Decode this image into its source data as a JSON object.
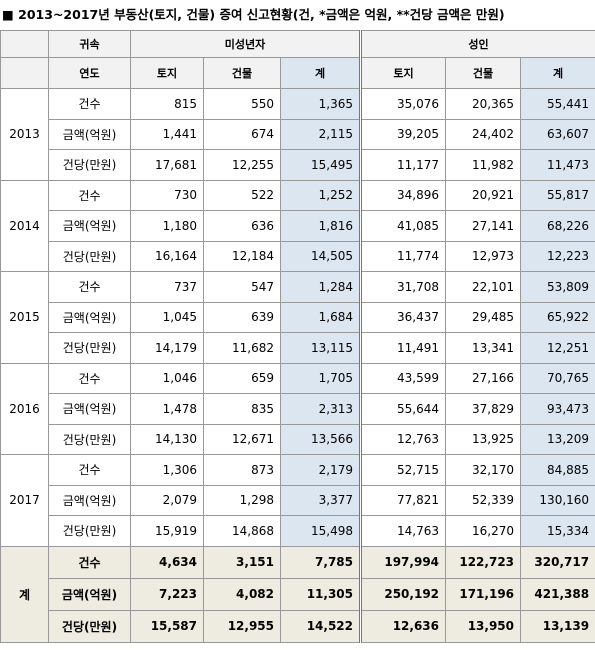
{
  "header": {
    "title": "■ 2013~2017년 부동산(토지, 건물) 증여 신고현황(건, *금액은 억원, **건당 금액은 만원)"
  },
  "table": {
    "corner_top": "귀속",
    "corner_bottom": "연도",
    "groups": [
      "미성년자",
      "성인"
    ],
    "columns": [
      "토지",
      "건물",
      "계",
      "토지",
      "건물",
      "계"
    ],
    "blocks": [
      {
        "year": "2013",
        "rows": [
          {
            "label": "건수",
            "values": [
              "815",
              "550",
              "1,365",
              "35,076",
              "20,365",
              "55,441"
            ]
          },
          {
            "label": "금액(억원)",
            "values": [
              "1,441",
              "674",
              "2,115",
              "39,205",
              "24,402",
              "63,607"
            ]
          },
          {
            "label": "건당(만원)",
            "values": [
              "17,681",
              "12,255",
              "15,495",
              "11,177",
              "11,982",
              "11,473"
            ]
          }
        ]
      },
      {
        "year": "2014",
        "rows": [
          {
            "label": "건수",
            "values": [
              "730",
              "522",
              "1,252",
              "34,896",
              "20,921",
              "55,817"
            ]
          },
          {
            "label": "금액(억원)",
            "values": [
              "1,180",
              "636",
              "1,816",
              "41,085",
              "27,141",
              "68,226"
            ]
          },
          {
            "label": "건당(만원)",
            "values": [
              "16,164",
              "12,184",
              "14,505",
              "11,774",
              "12,973",
              "12,223"
            ]
          }
        ]
      },
      {
        "year": "2015",
        "rows": [
          {
            "label": "건수",
            "values": [
              "737",
              "547",
              "1,284",
              "31,708",
              "22,101",
              "53,809"
            ]
          },
          {
            "label": "금액(억원)",
            "values": [
              "1,045",
              "639",
              "1,684",
              "36,437",
              "29,485",
              "65,922"
            ]
          },
          {
            "label": "건당(만원)",
            "values": [
              "14,179",
              "11,682",
              "13,115",
              "11,491",
              "13,341",
              "12,251"
            ]
          }
        ]
      },
      {
        "year": "2016",
        "rows": [
          {
            "label": "건수",
            "values": [
              "1,046",
              "659",
              "1,705",
              "43,599",
              "27,166",
              "70,765"
            ]
          },
          {
            "label": "금액(억원)",
            "values": [
              "1,478",
              "835",
              "2,313",
              "55,644",
              "37,829",
              "93,473"
            ]
          },
          {
            "label": "건당(만원)",
            "values": [
              "14,130",
              "12,671",
              "13,566",
              "12,763",
              "13,925",
              "13,209"
            ]
          }
        ]
      },
      {
        "year": "2017",
        "rows": [
          {
            "label": "건수",
            "values": [
              "1,306",
              "873",
              "2,179",
              "52,715",
              "32,170",
              "84,885"
            ]
          },
          {
            "label": "금액(억원)",
            "values": [
              "2,079",
              "1,298",
              "3,377",
              "77,821",
              "52,339",
              "130,160"
            ]
          },
          {
            "label": "건당(만원)",
            "values": [
              "15,919",
              "14,868",
              "15,498",
              "14,763",
              "16,270",
              "15,334"
            ]
          }
        ]
      }
    ],
    "total": {
      "label": "계",
      "rows": [
        {
          "label": "건수",
          "values": [
            "4,634",
            "3,151",
            "7,785",
            "197,994",
            "122,723",
            "320,717"
          ]
        },
        {
          "label": "금액(억원)",
          "values": [
            "7,223",
            "4,082",
            "11,305",
            "250,192",
            "171,196",
            "421,388"
          ]
        },
        {
          "label": "건당(만원)",
          "values": [
            "15,587",
            "12,955",
            "14,522",
            "12,636",
            "13,950",
            "13,139"
          ]
        }
      ]
    }
  }
}
